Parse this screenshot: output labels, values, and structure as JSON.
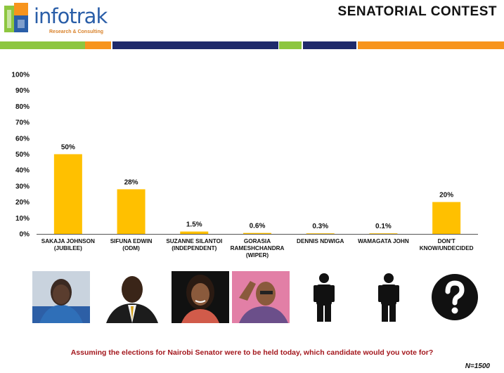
{
  "header": {
    "logo_text": "infotrak",
    "logo_subtitle": "Research & Consulting",
    "title": "SENATORIAL  CONTEST"
  },
  "colors": {
    "bar": "#FFC000",
    "green": "#8DC63F",
    "orange": "#F7941D",
    "navy": "#1F2A6B",
    "question": "#A3171D"
  },
  "chart_data": {
    "type": "bar",
    "categories": [
      [
        "SAKAJA JOHNSON",
        "(JUBILEE)"
      ],
      [
        "SIFUNA EDWIN",
        "(ODM)"
      ],
      [
        "SUZANNE SILANTOI",
        "(INDEPENDENT)"
      ],
      [
        "GORASIA",
        "RAMESHCHANDRA",
        "(WIPER)"
      ],
      [
        "DENNIS NDWIGA"
      ],
      [
        "WAMAGATA JOHN"
      ],
      [
        "DON'T",
        "KNOW/UNDECIDED"
      ]
    ],
    "values": [
      50,
      28,
      1.5,
      0.6,
      0.3,
      0.1,
      20
    ],
    "data_labels": [
      "50%",
      "28%",
      "1.5%",
      "0.6%",
      "0.3%",
      "0.1%",
      "20%"
    ],
    "ylim": [
      0,
      100
    ],
    "y_ticks": [
      "0%",
      "10%",
      "20%",
      "30%",
      "40%",
      "50%",
      "60%",
      "70%",
      "80%",
      "90%",
      "100%"
    ],
    "grid": false,
    "legend": "none"
  },
  "candidates": [
    {
      "name": "sakaja-johnson-photo",
      "kind": "photo"
    },
    {
      "name": "sifuna-edwin-photo",
      "kind": "photo"
    },
    {
      "name": "suzanne-silantoi-photo",
      "kind": "photo"
    },
    {
      "name": "gorasia-rameshchandra-photo",
      "kind": "photo"
    },
    {
      "name": "person-silhouette-icon",
      "kind": "silhouette"
    },
    {
      "name": "person-silhouette-icon",
      "kind": "silhouette"
    },
    {
      "name": "question-mark-icon",
      "kind": "question"
    }
  ],
  "footer": {
    "question": "Assuming the elections for Nairobi Senator were to be held today, which candidate would you vote for?",
    "sample_size": "N=1500"
  }
}
